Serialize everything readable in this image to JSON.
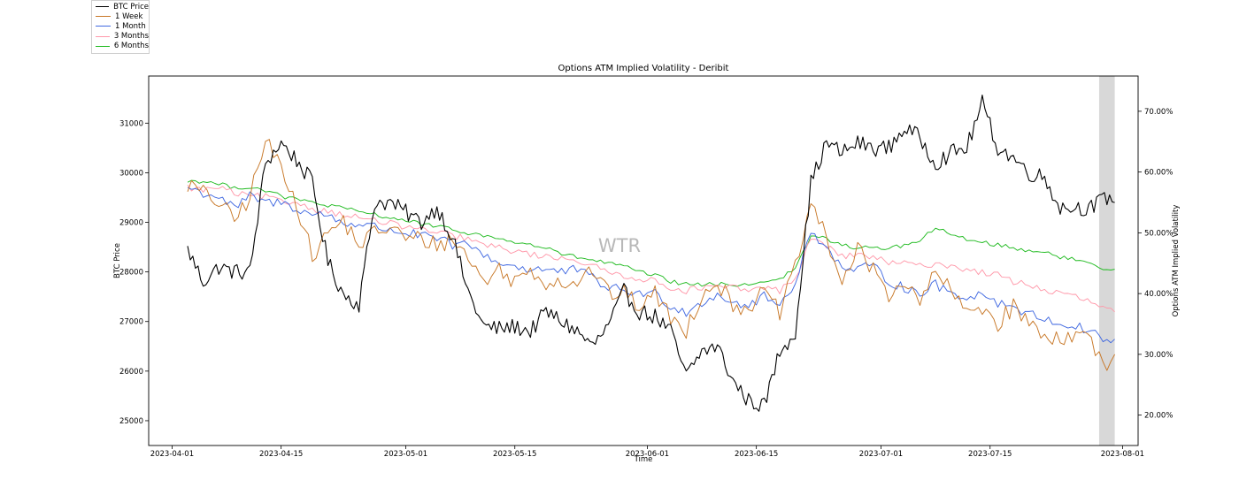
{
  "chart_data": {
    "type": "line",
    "title": "Options ATM Implied Volatility - Deribit",
    "xlabel": "Time",
    "ylabel_left": "BTC Price",
    "ylabel_right": "Options ATM Implied Volatility",
    "watermark": "WTR",
    "x_ticks": [
      "2023-04-01",
      "2023-04-15",
      "2023-05-01",
      "2023-05-15",
      "2023-06-01",
      "2023-06-15",
      "2023-07-01",
      "2023-07-15",
      "2023-08-01"
    ],
    "x_range": [
      "2023-03-29",
      "2023-08-03"
    ],
    "y_left_ticks": [
      25000,
      26000,
      27000,
      28000,
      29000,
      30000,
      31000
    ],
    "y_left_range": [
      24500,
      31950
    ],
    "y_right_ticks": [
      "20.00%",
      "30.00%",
      "40.00%",
      "50.00%",
      "60.00%",
      "70.00%"
    ],
    "y_right_range": [
      15.0,
      75.8
    ],
    "shaded_region": [
      "2023-07-29",
      "2023-07-31"
    ],
    "legend_position": "top-left, outside axes",
    "dates": [
      "2023-04-03",
      "2023-04-05",
      "2023-04-07",
      "2023-04-09",
      "2023-04-11",
      "2023-04-13",
      "2023-04-15",
      "2023-04-17",
      "2023-04-19",
      "2023-04-21",
      "2023-04-23",
      "2023-04-25",
      "2023-04-27",
      "2023-04-29",
      "2023-05-01",
      "2023-05-03",
      "2023-05-05",
      "2023-05-07",
      "2023-05-09",
      "2023-05-11",
      "2023-05-13",
      "2023-05-15",
      "2023-05-17",
      "2023-05-19",
      "2023-05-21",
      "2023-05-23",
      "2023-05-25",
      "2023-05-27",
      "2023-05-29",
      "2023-05-31",
      "2023-06-02",
      "2023-06-04",
      "2023-06-06",
      "2023-06-08",
      "2023-06-10",
      "2023-06-12",
      "2023-06-14",
      "2023-06-16",
      "2023-06-18",
      "2023-06-20",
      "2023-06-22",
      "2023-06-24",
      "2023-06-26",
      "2023-06-28",
      "2023-06-30",
      "2023-07-02",
      "2023-07-04",
      "2023-07-06",
      "2023-07-08",
      "2023-07-10",
      "2023-07-12",
      "2023-07-14",
      "2023-07-16",
      "2023-07-18",
      "2023-07-20",
      "2023-07-22",
      "2023-07-24",
      "2023-07-26",
      "2023-07-28",
      "2023-07-30",
      "2023-07-31"
    ],
    "series": [
      {
        "name": "BTC Price",
        "axis": "left",
        "color": "#000000",
        "values": [
          28450,
          27800,
          28100,
          28000,
          28000,
          30200,
          30600,
          30250,
          29800,
          28200,
          27550,
          27350,
          29400,
          29400,
          29200,
          29000,
          29300,
          28700,
          27600,
          26900,
          26850,
          26900,
          26800,
          27200,
          27000,
          26800,
          26500,
          26900,
          27600,
          27200,
          27100,
          26800,
          25900,
          26400,
          26500,
          25800,
          25400,
          25300,
          26400,
          26800,
          29800,
          30600,
          30400,
          30600,
          30500,
          30500,
          30900,
          30700,
          30200,
          30400,
          30500,
          31400,
          30500,
          30300,
          30000,
          29900,
          29300,
          29300,
          29300,
          29500,
          29400
        ]
      },
      {
        "name": "1 Week",
        "axis": "right",
        "color": "#c87828",
        "values": [
          58.0,
          56.5,
          55.0,
          52.0,
          56.0,
          65.0,
          61.0,
          55.0,
          46.0,
          50.0,
          52.0,
          48.0,
          50.0,
          51.0,
          49.0,
          49.0,
          48.0,
          49.0,
          46.0,
          42.0,
          44.0,
          42.0,
          44.0,
          42.0,
          42.0,
          42.0,
          44.0,
          40.0,
          40.0,
          38.0,
          40.0,
          36.0,
          34.0,
          40.0,
          42.0,
          38.0,
          38.0,
          40.0,
          37.0,
          44.0,
          55.0,
          49.0,
          42.0,
          47.0,
          44.0,
          40.0,
          42.0,
          38.0,
          44.0,
          40.0,
          37.0,
          38.0,
          35.0,
          38.0,
          35.0,
          33.0,
          33.0,
          33.0,
          33.0,
          26.0,
          30.0
        ]
      },
      {
        "name": "1 Month",
        "axis": "right",
        "color": "#4169e1",
        "values": [
          57.5,
          56.5,
          56.0,
          54.0,
          56.0,
          55.0,
          55.0,
          54.0,
          53.0,
          53.0,
          51.5,
          51.5,
          51.0,
          50.5,
          50.0,
          49.5,
          49.0,
          48.0,
          48.0,
          46.5,
          45.0,
          44.5,
          44.0,
          44.0,
          43.5,
          44.0,
          42.5,
          41.0,
          40.5,
          40.0,
          40.0,
          38.0,
          37.0,
          38.5,
          40.0,
          38.5,
          38.0,
          39.5,
          38.0,
          42.0,
          50.0,
          48.0,
          44.0,
          44.0,
          44.5,
          42.0,
          41.0,
          40.0,
          41.5,
          40.0,
          39.5,
          40.0,
          38.5,
          38.0,
          36.5,
          36.0,
          35.0,
          34.5,
          34.0,
          32.0,
          32.5
        ]
      },
      {
        "name": "3 Months",
        "axis": "right",
        "color": "#ff99aa",
        "values": [
          57.5,
          57.0,
          57.5,
          56.5,
          56.0,
          56.0,
          55.0,
          55.0,
          54.0,
          53.5,
          53.0,
          52.5,
          52.0,
          51.5,
          51.0,
          50.5,
          50.0,
          49.5,
          49.0,
          48.0,
          47.5,
          47.0,
          46.5,
          46.0,
          46.0,
          45.5,
          44.5,
          43.5,
          43.0,
          42.5,
          42.0,
          41.0,
          40.5,
          41.0,
          41.0,
          41.0,
          40.5,
          41.0,
          40.5,
          42.5,
          49.0,
          48.0,
          46.0,
          46.5,
          46.0,
          45.0,
          45.0,
          44.5,
          45.0,
          44.5,
          44.0,
          43.5,
          43.0,
          42.0,
          41.5,
          40.5,
          40.0,
          39.5,
          38.5,
          37.5,
          37.0
        ]
      },
      {
        "name": "6 Months",
        "axis": "right",
        "color": "#22bb22",
        "values": [
          58.5,
          58.5,
          58.0,
          57.5,
          57.5,
          57.0,
          56.0,
          55.5,
          55.0,
          54.5,
          54.0,
          53.5,
          53.0,
          52.5,
          52.0,
          51.5,
          51.0,
          50.5,
          50.0,
          49.5,
          49.0,
          48.5,
          48.0,
          47.5,
          46.5,
          46.0,
          45.5,
          45.0,
          44.5,
          43.5,
          43.0,
          42.0,
          41.5,
          41.5,
          41.5,
          41.5,
          41.5,
          42.0,
          42.5,
          44.0,
          49.5,
          49.0,
          48.0,
          47.5,
          47.5,
          47.5,
          48.0,
          48.5,
          51.0,
          49.5,
          49.0,
          48.5,
          48.0,
          47.5,
          47.0,
          47.0,
          46.0,
          45.5,
          45.0,
          44.0,
          44.0
        ]
      }
    ]
  }
}
